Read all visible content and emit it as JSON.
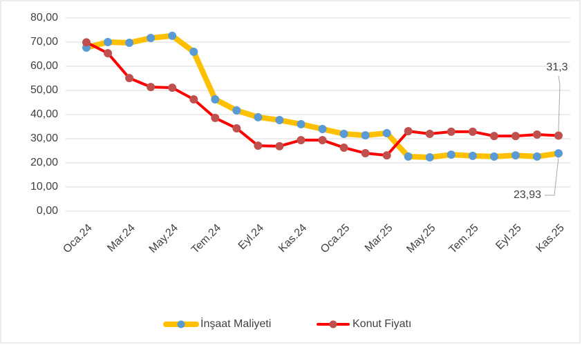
{
  "chart_data": {
    "type": "line",
    "categories": [
      "Oca.24",
      null,
      "Mar.24",
      null,
      "May.24",
      null,
      "Tem.24",
      null,
      "Eyl.24",
      null,
      "Kas.24",
      null,
      "Oca.25",
      null,
      "Mar.25",
      null,
      "May.25",
      null,
      "Tem.25",
      null,
      "Eyl.25",
      null,
      "Kas.25"
    ],
    "series": [
      {
        "name": "İnşaat Maliyeti",
        "color": "#FFC000",
        "marker_color": "#5B9BD5",
        "values": [
          67.7,
          70.0,
          69.7,
          71.7,
          72.6,
          66.0,
          46.3,
          41.7,
          38.9,
          37.7,
          36.0,
          34.0,
          32.0,
          31.4,
          32.3,
          22.6,
          22.3,
          23.4,
          22.9,
          22.6,
          23.1,
          22.6,
          23.93
        ],
        "value_labels": [
          null,
          null,
          null,
          null,
          null,
          null,
          null,
          null,
          null,
          null,
          null,
          null,
          null,
          null,
          null,
          null,
          null,
          null,
          null,
          null,
          null,
          null,
          "23,93"
        ]
      },
      {
        "name": "Konut Fiyatı",
        "color": "#FF0000",
        "marker_color": "#C0504D",
        "values": [
          69.9,
          65.4,
          55.1,
          51.4,
          51.1,
          46.3,
          38.6,
          34.3,
          27.1,
          26.9,
          29.4,
          29.4,
          26.3,
          24.0,
          23.1,
          33.1,
          32.0,
          32.9,
          32.9,
          31.1,
          31.1,
          31.7,
          31.3
        ],
        "value_labels": [
          null,
          null,
          null,
          null,
          null,
          null,
          null,
          null,
          null,
          null,
          null,
          null,
          null,
          null,
          null,
          null,
          null,
          null,
          null,
          null,
          null,
          null,
          "31,3"
        ]
      }
    ],
    "ylim": [
      0,
      80
    ],
    "yticks": [
      {
        "value": 0,
        "label": "0,00"
      },
      {
        "value": 10,
        "label": "10,00"
      },
      {
        "value": 20,
        "label": "20,00"
      },
      {
        "value": 30,
        "label": "30,00"
      },
      {
        "value": 40,
        "label": "40,00"
      },
      {
        "value": 50,
        "label": "50,00"
      },
      {
        "value": 60,
        "label": "60,00"
      },
      {
        "value": 70,
        "label": "70,00"
      },
      {
        "value": 80,
        "label": "80,00"
      }
    ],
    "grid": true,
    "legend": "bottom"
  }
}
